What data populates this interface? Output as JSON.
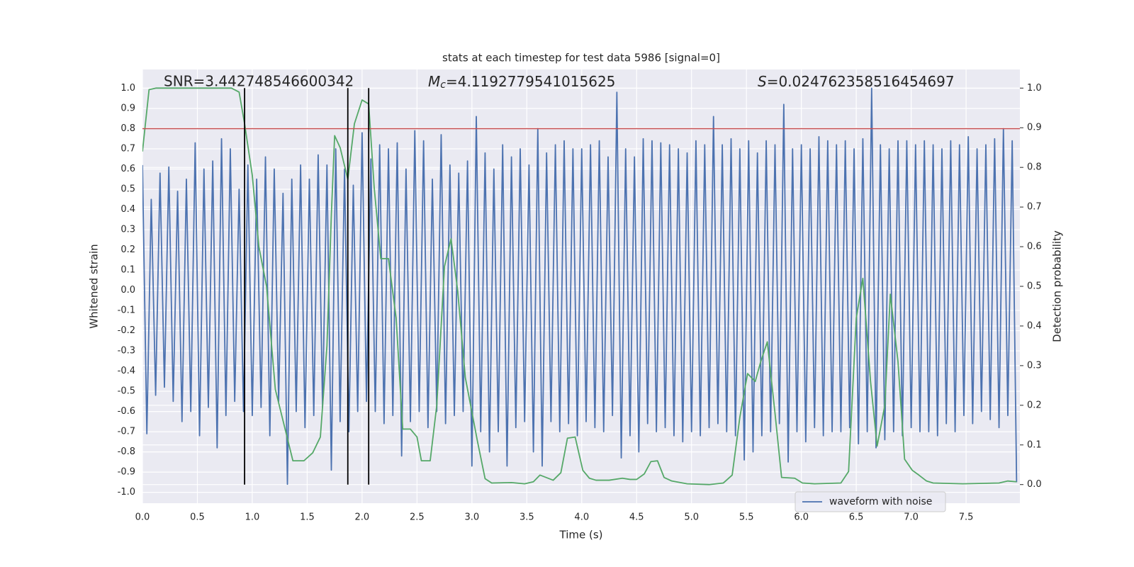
{
  "chart_data": {
    "type": "line",
    "title": "stats at each timestep for test data 5986 [signal=0]",
    "x_label": "Time (s)",
    "y_label": "Whitened strain",
    "y2_label": "Detection probability",
    "annotations": [
      "SNR=3.442748546600342",
      {
        "symbol": "M",
        "subscript": "c",
        "value_text": "=4.1192779541015625"
      },
      {
        "symbol": "S",
        "value_text": "=0.024762358516454697"
      }
    ],
    "xlim": [
      0,
      7.99
    ],
    "ylim": [
      -1.054,
      1.093
    ],
    "y2lim": [
      -0.047,
      1.047
    ],
    "xticks": [
      {
        "value": 0,
        "label": "0.0"
      },
      0.5,
      {
        "value": 1,
        "label": "1.0"
      },
      1.5,
      {
        "value": 2,
        "label": "2.0"
      },
      2.5,
      {
        "value": 3,
        "label": "3.0"
      },
      3.5,
      {
        "value": 4,
        "label": "4.0"
      },
      4.5,
      {
        "value": 5,
        "label": "5.0"
      },
      5.5,
      {
        "value": 6,
        "label": "6.0"
      },
      6.5,
      {
        "value": 7,
        "label": "7.0"
      },
      7.5
    ],
    "yticks": [
      {
        "value": -1,
        "label": "-1.0"
      },
      -0.9,
      -0.8,
      -0.7,
      -0.6,
      -0.5,
      -0.4,
      -0.3,
      -0.2,
      -0.1,
      {
        "value": 0,
        "label": "0.0"
      },
      0.1,
      0.2,
      0.3,
      0.4,
      0.5,
      0.6,
      0.7,
      0.8,
      0.9,
      {
        "value": 1,
        "label": "1.0"
      }
    ],
    "y2ticks": [
      {
        "value": 0,
        "label": "0.0"
      },
      0.1,
      0.2,
      0.3,
      0.4,
      0.5,
      0.6,
      0.7,
      0.8,
      0.9,
      {
        "value": 1,
        "label": "1.0"
      }
    ],
    "grid": true,
    "legend": "lower right",
    "background": "#eaeaf2",
    "hline": {
      "value": 0.8,
      "color": "#c44e52"
    },
    "vlines": {
      "x": [
        0.93,
        1.87,
        2.06
      ],
      "ymin": 0,
      "ymax": 1,
      "axis": "y2",
      "color": "#000000"
    },
    "series": [
      {
        "name": "waveform with noise",
        "color": "#4c72b0",
        "x": [
          0,
          0.04,
          0.08,
          0.12,
          0.16,
          0.2,
          0.24,
          0.28,
          0.32,
          0.36,
          0.4,
          0.44,
          0.48,
          0.52,
          0.56,
          0.6,
          0.64,
          0.68,
          0.72,
          0.76,
          0.8,
          0.84,
          0.88,
          0.92,
          0.96,
          1,
          1.04,
          1.08,
          1.12,
          1.16,
          1.2,
          1.24,
          1.28,
          1.32,
          1.36,
          1.4,
          1.44,
          1.48,
          1.52,
          1.56,
          1.6,
          1.64,
          1.68,
          1.72,
          1.76,
          1.8,
          1.84,
          1.88,
          1.92,
          1.96,
          2,
          2.04,
          2.08,
          2.12,
          2.16,
          2.2,
          2.24,
          2.28,
          2.32,
          2.36,
          2.4,
          2.44,
          2.48,
          2.52,
          2.56,
          2.6,
          2.64,
          2.68,
          2.72,
          2.76,
          2.8,
          2.84,
          2.88,
          2.92,
          2.96,
          3,
          3.04,
          3.08,
          3.12,
          3.16,
          3.2,
          3.24,
          3.28,
          3.32,
          3.36,
          3.4,
          3.44,
          3.48,
          3.52,
          3.56,
          3.6,
          3.64,
          3.68,
          3.72,
          3.76,
          3.8,
          3.84,
          3.88,
          3.92,
          3.96,
          4,
          4.04,
          4.08,
          4.12,
          4.16,
          4.2,
          4.24,
          4.28,
          4.32,
          4.36,
          4.4,
          4.44,
          4.48,
          4.52,
          4.56,
          4.6,
          4.64,
          4.68,
          4.72,
          4.76,
          4.8,
          4.84,
          4.88,
          4.92,
          4.96,
          5,
          5.04,
          5.08,
          5.12,
          5.16,
          5.2,
          5.24,
          5.28,
          5.32,
          5.36,
          5.4,
          5.44,
          5.48,
          5.52,
          5.56,
          5.6,
          5.64,
          5.68,
          5.72,
          5.76,
          5.8,
          5.84,
          5.88,
          5.92,
          5.96,
          6,
          6.04,
          6.08,
          6.12,
          6.16,
          6.2,
          6.24,
          6.28,
          6.32,
          6.36,
          6.4,
          6.44,
          6.48,
          6.52,
          6.56,
          6.6,
          6.64,
          6.68,
          6.72,
          6.76,
          6.8,
          6.84,
          6.88,
          6.92,
          6.96,
          7,
          7.04,
          7.08,
          7.12,
          7.16,
          7.2,
          7.24,
          7.28,
          7.32,
          7.36,
          7.4,
          7.44,
          7.48,
          7.52,
          7.56,
          7.6,
          7.64,
          7.68,
          7.72,
          7.76,
          7.8,
          7.84,
          7.88,
          7.92,
          7.96
        ],
        "values": [
          0.62,
          -0.71,
          0.45,
          -0.52,
          0.58,
          -0.48,
          0.61,
          -0.55,
          0.49,
          -0.65,
          0.55,
          -0.6,
          0.73,
          -0.72,
          0.6,
          -0.58,
          0.64,
          -0.78,
          0.75,
          -0.62,
          0.7,
          -0.55,
          0.5,
          -0.6,
          0.62,
          -0.62,
          0.55,
          -0.58,
          0.66,
          -0.72,
          0.6,
          -0.55,
          0.48,
          -0.96,
          0.55,
          -0.6,
          0.62,
          -0.68,
          0.55,
          -0.62,
          0.67,
          -0.58,
          0.62,
          -0.89,
          0.7,
          -0.65,
          0.6,
          -0.7,
          0.52,
          -0.6,
          0.78,
          -0.55,
          0.65,
          -0.6,
          0.72,
          -0.66,
          0.7,
          -0.62,
          0.73,
          -0.82,
          0.6,
          -0.65,
          0.79,
          -0.6,
          0.74,
          -0.68,
          0.55,
          -0.6,
          0.77,
          -0.66,
          0.62,
          -0.62,
          0.58,
          -0.6,
          0.64,
          -0.87,
          0.86,
          -0.7,
          0.68,
          -0.8,
          0.6,
          -0.7,
          0.72,
          -0.87,
          0.66,
          -0.68,
          0.7,
          -0.65,
          0.62,
          -0.8,
          0.8,
          -0.87,
          0.68,
          -0.65,
          0.72,
          -0.7,
          0.74,
          -0.66,
          0.7,
          -0.72,
          0.7,
          -0.65,
          0.72,
          -0.68,
          0.74,
          -0.7,
          0.66,
          -0.62,
          0.98,
          -0.83,
          0.7,
          -0.72,
          0.66,
          -0.8,
          0.75,
          -0.66,
          0.74,
          -0.7,
          0.73,
          -0.68,
          0.72,
          -0.72,
          0.7,
          -0.75,
          0.68,
          -0.7,
          0.74,
          -0.72,
          0.72,
          -0.68,
          0.86,
          -0.66,
          0.72,
          -0.7,
          0.75,
          -0.72,
          0.7,
          -0.84,
          0.74,
          -0.8,
          0.68,
          -0.72,
          0.74,
          -0.7,
          0.72,
          -0.66,
          0.92,
          -0.85,
          0.7,
          -0.7,
          0.72,
          -0.75,
          0.7,
          -0.68,
          0.76,
          -0.72,
          0.74,
          -0.7,
          0.72,
          -0.7,
          0.74,
          -0.68,
          0.7,
          -0.76,
          0.75,
          -0.7,
          1.0,
          -0.78,
          0.72,
          -0.74,
          0.7,
          -0.7,
          0.74,
          -0.72,
          0.74,
          -0.68,
          0.72,
          -0.7,
          0.74,
          -0.7,
          0.72,
          -0.72,
          0.7,
          -0.66,
          0.74,
          -0.7,
          0.72,
          -0.62,
          0.76,
          -0.66,
          0.7,
          -0.6,
          0.72,
          -0.64,
          0.75,
          -0.68,
          0.8,
          -0.62,
          0.74,
          -0.95
        ]
      },
      {
        "axis": "y2",
        "color": "#55a868",
        "x": [
          0,
          0.06,
          0.125,
          0.81,
          0.88,
          0.93,
          1.0,
          1.06,
          1.13,
          1.21,
          1.29,
          1.37,
          1.47,
          1.55,
          1.62,
          1.68,
          1.72,
          1.75,
          1.8,
          1.87,
          1.93,
          2.0,
          2.06,
          2.11,
          2.17,
          2.24,
          2.31,
          2.37,
          2.44,
          2.5,
          2.54,
          2.62,
          2.68,
          2.75,
          2.81,
          2.87,
          2.94,
          3.05,
          3.12,
          3.18,
          3.36,
          3.48,
          3.56,
          3.62,
          3.74,
          3.81,
          3.87,
          3.94,
          4.01,
          4.07,
          4.13,
          4.25,
          4.37,
          4.44,
          4.5,
          4.57,
          4.63,
          4.69,
          4.75,
          4.82,
          4.96,
          5.16,
          5.29,
          5.37,
          5.44,
          5.51,
          5.58,
          5.63,
          5.69,
          5.76,
          5.82,
          5.94,
          6.01,
          6.12,
          6.36,
          6.43,
          6.5,
          6.56,
          6.63,
          6.69,
          6.76,
          6.81,
          6.88,
          6.94,
          7.01,
          7.07,
          7.14,
          7.2,
          7.47,
          7.8,
          7.88,
          7.96
        ],
        "values": [
          0.84,
          0.996,
          1.0,
          1.0,
          0.99,
          0.91,
          0.78,
          0.6,
          0.5,
          0.24,
          0.15,
          0.06,
          0.06,
          0.08,
          0.12,
          0.35,
          0.68,
          0.88,
          0.85,
          0.77,
          0.91,
          0.97,
          0.96,
          0.75,
          0.57,
          0.57,
          0.42,
          0.14,
          0.14,
          0.12,
          0.06,
          0.06,
          0.2,
          0.55,
          0.62,
          0.49,
          0.27,
          0.11,
          0.015,
          0.004,
          0.005,
          0.002,
          0.007,
          0.024,
          0.011,
          0.03,
          0.117,
          0.12,
          0.036,
          0.016,
          0.011,
          0.011,
          0.016,
          0.013,
          0.013,
          0.027,
          0.058,
          0.06,
          0.018,
          0.009,
          0.002,
          0.0,
          0.004,
          0.024,
          0.17,
          0.28,
          0.26,
          0.31,
          0.36,
          0.18,
          0.018,
          0.016,
          0.004,
          0.002,
          0.004,
          0.033,
          0.42,
          0.52,
          0.26,
          0.097,
          0.2,
          0.48,
          0.31,
          0.064,
          0.036,
          0.024,
          0.009,
          0.004,
          0.002,
          0.004,
          0.009,
          0.007
        ]
      }
    ]
  }
}
